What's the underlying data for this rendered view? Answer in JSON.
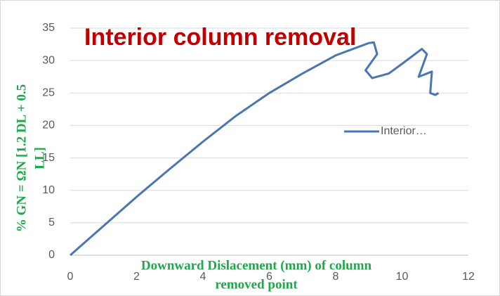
{
  "chart_data": {
    "type": "line",
    "title": "Interior column removal",
    "x_label": [
      "Downward Dislacement (mm) of column",
      "removed point"
    ],
    "y_label": [
      "% GN = ΩN [1.2 DL + 0.5",
      "LL]"
    ],
    "series": [
      {
        "name": "Interior…",
        "color": "#4a76b0",
        "x": [
          0,
          1,
          2,
          3,
          4,
          5,
          6,
          7,
          8,
          9,
          9.15,
          9.25,
          8.9,
          9.1,
          9.6,
          10,
          10.6,
          10.75,
          10.5,
          10.9,
          10.85,
          11,
          11.1
        ],
        "values": [
          0,
          4.5,
          9,
          13.3,
          17.5,
          21.5,
          25,
          28,
          30.8,
          32.7,
          32.8,
          31,
          28.5,
          27.3,
          28,
          29.5,
          31.8,
          31,
          27.5,
          28.3,
          25,
          24.7,
          25
        ]
      }
    ],
    "xlim": [
      0,
      12
    ],
    "xticks": [
      0,
      2,
      4,
      6,
      8,
      10,
      12
    ],
    "ylim": [
      0,
      35
    ],
    "yticks": [
      0,
      5,
      10,
      15,
      20,
      25,
      30,
      35
    ],
    "grid": true,
    "legend": "right"
  }
}
